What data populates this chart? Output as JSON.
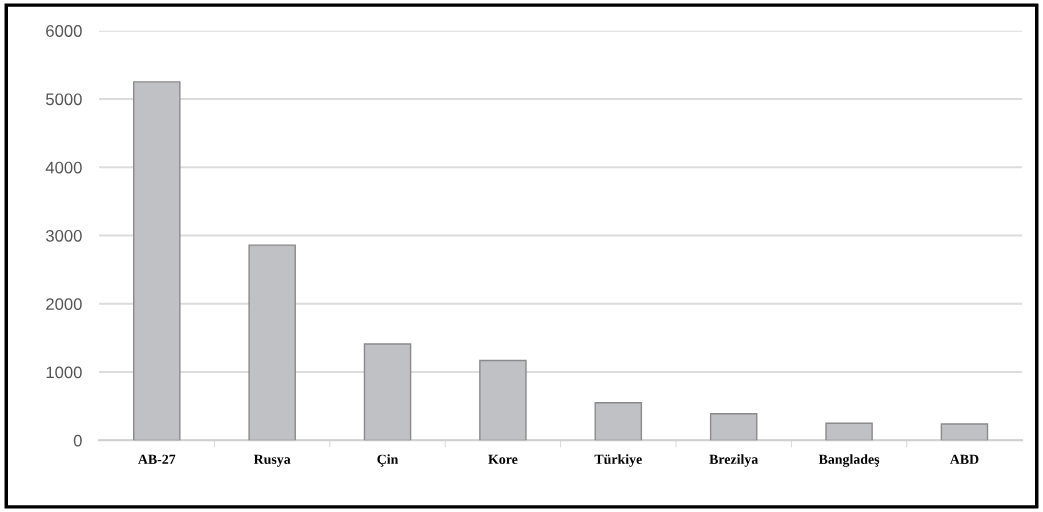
{
  "chart_data": {
    "type": "bar",
    "categories": [
      "AB-27",
      "Rusya",
      "Çin",
      "Kore",
      "Türkiye",
      "Brezilya",
      "Bangladeş",
      "ABD"
    ],
    "values": [
      5250,
      2860,
      1410,
      1170,
      550,
      390,
      250,
      240
    ],
    "color": "#c0c1c4",
    "ylim": [
      0,
      6000
    ],
    "yticks": [
      0,
      1000,
      2000,
      3000,
      4000,
      5000,
      6000
    ],
    "grid": "y"
  }
}
